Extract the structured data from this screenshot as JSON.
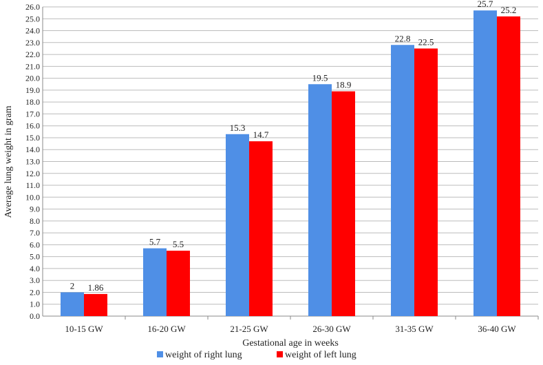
{
  "chart_data": {
    "type": "bar",
    "title": "",
    "xlabel": "Gestational age in weeks",
    "ylabel": "Average lung  weight in gram",
    "ylim": [
      0,
      26
    ],
    "ytick_step": 1,
    "grid": true,
    "legend_position": "bottom",
    "categories": [
      "10-15 GW",
      "16-20 GW",
      "21-25 GW",
      "26-30 GW",
      "31-35 GW",
      "36-40 GW"
    ],
    "series": [
      {
        "name": "weight of right lung",
        "color": "#4f8fe6",
        "values": [
          2,
          5.7,
          15.3,
          19.5,
          22.8,
          25.7
        ],
        "labels": [
          "2",
          "5.7",
          "15.3",
          "19.5",
          "22.8",
          "25.7"
        ]
      },
      {
        "name": "weight of left lung",
        "color": "#ff0000",
        "values": [
          1.86,
          5.5,
          14.7,
          18.9,
          22.5,
          25.2
        ],
        "labels": [
          "1.86",
          "5.5",
          "14.7",
          "18.9",
          "22.5",
          "25.2"
        ]
      }
    ]
  }
}
